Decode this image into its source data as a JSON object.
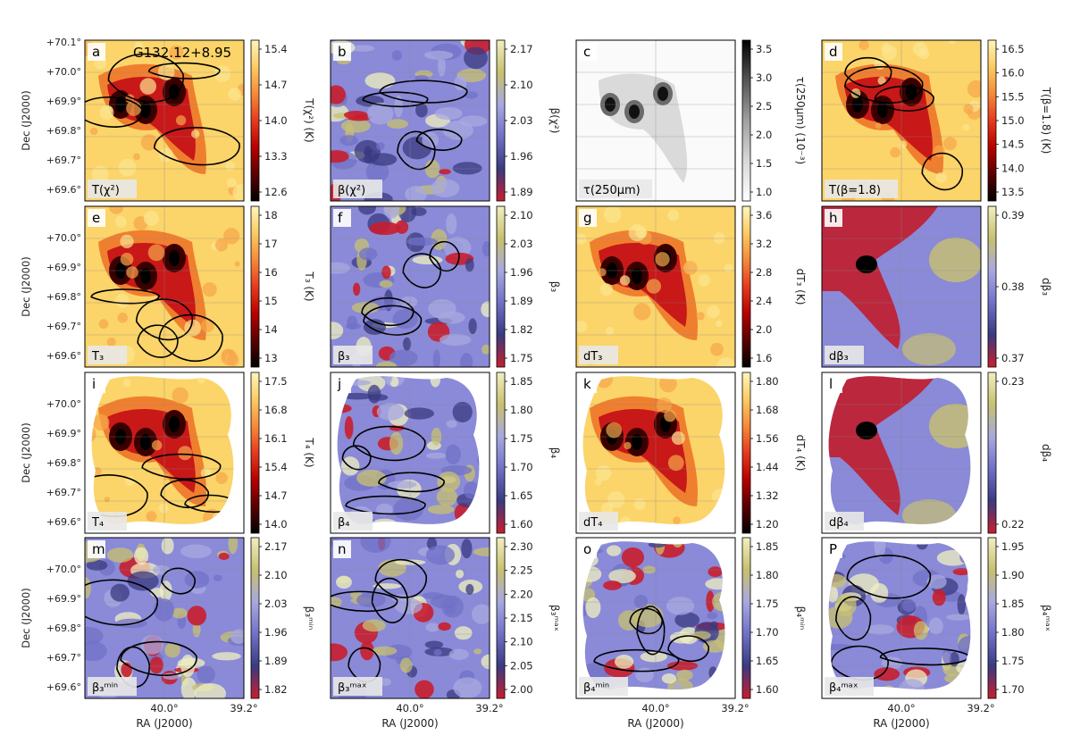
{
  "figure": {
    "object_label": "G132.12+8.95",
    "y_axis_label": "Dec (J2000)",
    "x_axis_label": "RA (J2000)",
    "dec_ticks": [
      "+70.1°",
      "+70.0°",
      "+69.9°",
      "+69.8°",
      "+69.7°",
      "+69.6°"
    ],
    "ra_ticks": [
      "40.0°",
      "39.2°"
    ],
    "colors": {
      "heat": [
        "#000000",
        "#5a0000",
        "#b80000",
        "#e63a1e",
        "#f58a3a",
        "#fbcb63",
        "#fff6b8"
      ],
      "gray": [
        "#ffffff",
        "#d8d8d8",
        "#a0a0a0",
        "#555555",
        "#000000"
      ],
      "diverge": [
        "#c81e2e",
        "#3a3a80",
        "#7070c8",
        "#a8a8e0",
        "#c8c070",
        "#f0f0c0"
      ]
    }
  },
  "panels": [
    {
      "letter": "a",
      "tag": "T(χ²)",
      "cb_label": "T(χ²) (K)",
      "ticks": [
        "15.4",
        "14.7",
        "14.0",
        "13.3",
        "12.6"
      ],
      "cmap": "heat",
      "shape": "rect",
      "field": "cores",
      "contours": true
    },
    {
      "letter": "b",
      "tag": "β(χ²)",
      "cb_label": "β(χ²)",
      "ticks": [
        "2.17",
        "2.10",
        "2.03",
        "1.96",
        "1.89"
      ],
      "cmap": "diverge",
      "shape": "rect",
      "field": "noise",
      "contours": true
    },
    {
      "letter": "c",
      "tag": "τ(250μm)",
      "cb_label": "τ(250μm) (10⁻³)",
      "ticks": [
        "3.5",
        "3.0",
        "2.5",
        "2.0",
        "1.5",
        "1.0"
      ],
      "cmap": "gray",
      "shape": "rect",
      "field": "tau",
      "contours": false
    },
    {
      "letter": "d",
      "tag": "T(β=1.8)",
      "cb_label": "T(β=1.8) (K)",
      "ticks": [
        "16.5",
        "16.0",
        "15.5",
        "15.0",
        "14.5",
        "14.0",
        "13.5"
      ],
      "cmap": "heat",
      "shape": "rect",
      "field": "cores",
      "contours": true
    },
    {
      "letter": "e",
      "tag": "T₃",
      "cb_label": "T₃ (K)",
      "ticks": [
        "18",
        "17",
        "16",
        "15",
        "14",
        "13"
      ],
      "cmap": "heat",
      "shape": "rect",
      "field": "cores",
      "contours": true
    },
    {
      "letter": "f",
      "tag": "β₃",
      "cb_label": "β₃",
      "ticks": [
        "2.10",
        "2.03",
        "1.96",
        "1.89",
        "1.82",
        "1.75"
      ],
      "cmap": "diverge",
      "shape": "rect",
      "field": "noise",
      "contours": true
    },
    {
      "letter": "g",
      "tag": "dT₃",
      "cb_label": "dT₃ (K)",
      "ticks": [
        "3.6",
        "3.2",
        "2.8",
        "2.4",
        "2.0",
        "1.6"
      ],
      "cmap": "heat",
      "shape": "rect",
      "field": "cores",
      "contours": false
    },
    {
      "letter": "h",
      "tag": "dβ₃",
      "cb_label": "dβ₃",
      "ticks": [
        "0.39",
        "0.38",
        "0.37"
      ],
      "cmap": "diverge",
      "shape": "rect",
      "field": "smooth",
      "contours": false
    },
    {
      "letter": "i",
      "tag": "T₄",
      "cb_label": "T₄ (K)",
      "ticks": [
        "17.5",
        "16.8",
        "16.1",
        "15.4",
        "14.7",
        "14.0"
      ],
      "cmap": "heat",
      "shape": "blob",
      "field": "cores",
      "contours": true
    },
    {
      "letter": "j",
      "tag": "β₄",
      "cb_label": "β₄",
      "ticks": [
        "1.85",
        "1.80",
        "1.75",
        "1.70",
        "1.65",
        "1.60"
      ],
      "cmap": "diverge",
      "shape": "blob",
      "field": "noise",
      "contours": true
    },
    {
      "letter": "k",
      "tag": "dT₄",
      "cb_label": "dT₄ (K)",
      "ticks": [
        "1.80",
        "1.68",
        "1.56",
        "1.44",
        "1.32",
        "1.20"
      ],
      "cmap": "heat",
      "shape": "blob",
      "field": "cores",
      "contours": false
    },
    {
      "letter": "l",
      "tag": "dβ₄",
      "cb_label": "dβ₄",
      "ticks": [
        "0.23",
        "0.22"
      ],
      "cmap": "diverge",
      "shape": "blob",
      "field": "smooth",
      "contours": false
    },
    {
      "letter": "m",
      "tag": "β₃ᵐⁱⁿ",
      "cb_label": "β₃ᵐⁱⁿ",
      "ticks": [
        "2.17",
        "2.10",
        "2.03",
        "1.96",
        "1.89",
        "1.82"
      ],
      "cmap": "diverge",
      "shape": "rect",
      "field": "noise",
      "contours": true
    },
    {
      "letter": "n",
      "tag": "β₃ᵐᵃˣ",
      "cb_label": "β₃ᵐᵃˣ",
      "ticks": [
        "2.30",
        "2.25",
        "2.20",
        "2.15",
        "2.10",
        "2.05",
        "2.00"
      ],
      "cmap": "diverge",
      "shape": "rect",
      "field": "noise",
      "contours": true
    },
    {
      "letter": "o",
      "tag": "β₄ᵐⁱⁿ",
      "cb_label": "β₄ᵐⁱⁿ",
      "ticks": [
        "1.85",
        "1.80",
        "1.75",
        "1.70",
        "1.65",
        "1.60"
      ],
      "cmap": "diverge",
      "shape": "blob",
      "field": "noise",
      "contours": true
    },
    {
      "letter": "P",
      "tag": "β₄ᵐᵃˣ",
      "cb_label": "β₄ᵐᵃˣ",
      "ticks": [
        "1.95",
        "1.90",
        "1.85",
        "1.80",
        "1.75",
        "1.70"
      ],
      "cmap": "diverge",
      "shape": "blob",
      "field": "noise",
      "contours": true
    }
  ]
}
